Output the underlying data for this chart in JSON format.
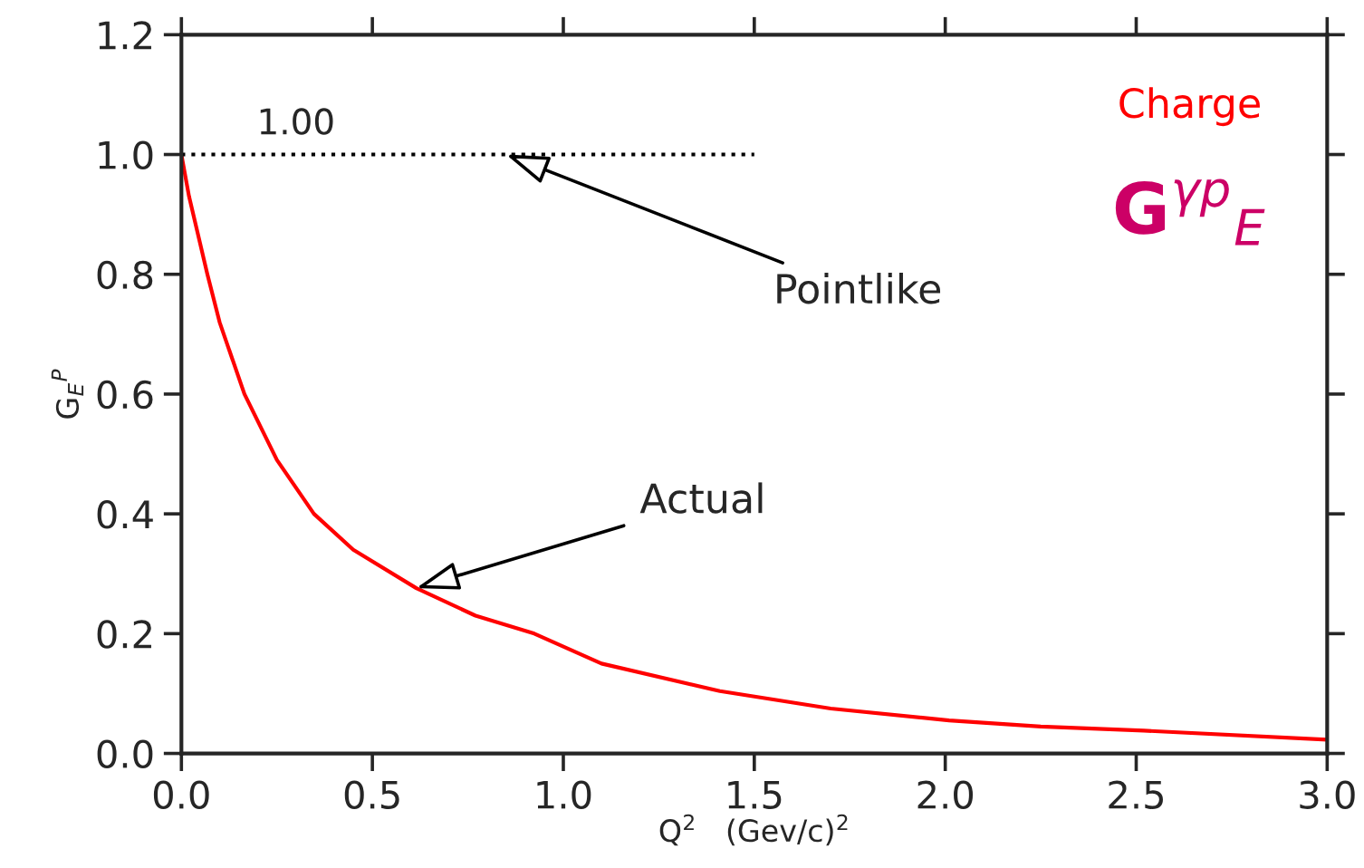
{
  "chart_data": {
    "type": "line",
    "xlabel": "Q$^{2}$   (Gev/c)$^{2}$",
    "ylabel": "G$_{E}$$^{P}$",
    "series": [
      {
        "color": "#ff0000",
        "line_style": "solid",
        "x": [
          0,
          0.02,
          0.068,
          0.1,
          0.165,
          0.25,
          0.347,
          0.45,
          0.615,
          0.77,
          0.924,
          1.1,
          1.41,
          1.7,
          2.01,
          2.25,
          2.52,
          3.0
        ],
        "values": [
          1.0,
          0.93,
          0.8,
          0.72,
          0.6,
          0.49,
          0.4,
          0.34,
          0.276,
          0.23,
          0.2,
          0.15,
          0.104,
          0.075,
          0.055,
          0.045,
          0.038,
          0.023
        ]
      },
      {
        "color": "#000000",
        "line_style": "dotted",
        "x": [
          0,
          1.5
        ],
        "values": [
          1.0,
          1.0
        ]
      }
    ],
    "annotations": [
      {
        "text": "1.00",
        "x": 0.3,
        "y": 1.0
      },
      {
        "text": "Pointlike",
        "x": 0.85,
        "y": 1.0
      },
      {
        "text": "Actual",
        "x": 0.615,
        "y": 0.276
      },
      "Charge",
      "G$^{γp}$$_{E}$"
    ],
    "xlim": [
      0,
      3.0
    ],
    "ylim": [
      0,
      1.2
    ],
    "xticks": [
      {
        "value": 0,
        "label": "0.0"
      },
      {
        "value": 0.5,
        "label": "0.5"
      },
      {
        "value": 1.0,
        "label": "1.0"
      },
      {
        "value": 1.5,
        "label": "1.5"
      },
      {
        "value": 2.0,
        "label": "2.0"
      },
      {
        "value": 2.5,
        "label": "2.5"
      },
      {
        "value": 3.0,
        "label": "3.0"
      }
    ],
    "yticks": [
      {
        "value": 0,
        "label": "0.0"
      },
      {
        "value": 0.2,
        "label": "0.2"
      },
      {
        "value": 0.4,
        "label": "0.4"
      },
      {
        "value": 0.6,
        "label": "0.6"
      },
      {
        "value": 0.8,
        "label": "0.8"
      },
      {
        "value": 1.0,
        "label": "1.0"
      },
      {
        "value": 1.2,
        "label": "1.2"
      }
    ],
    "grid": false,
    "legend": false,
    "marker": "none"
  }
}
